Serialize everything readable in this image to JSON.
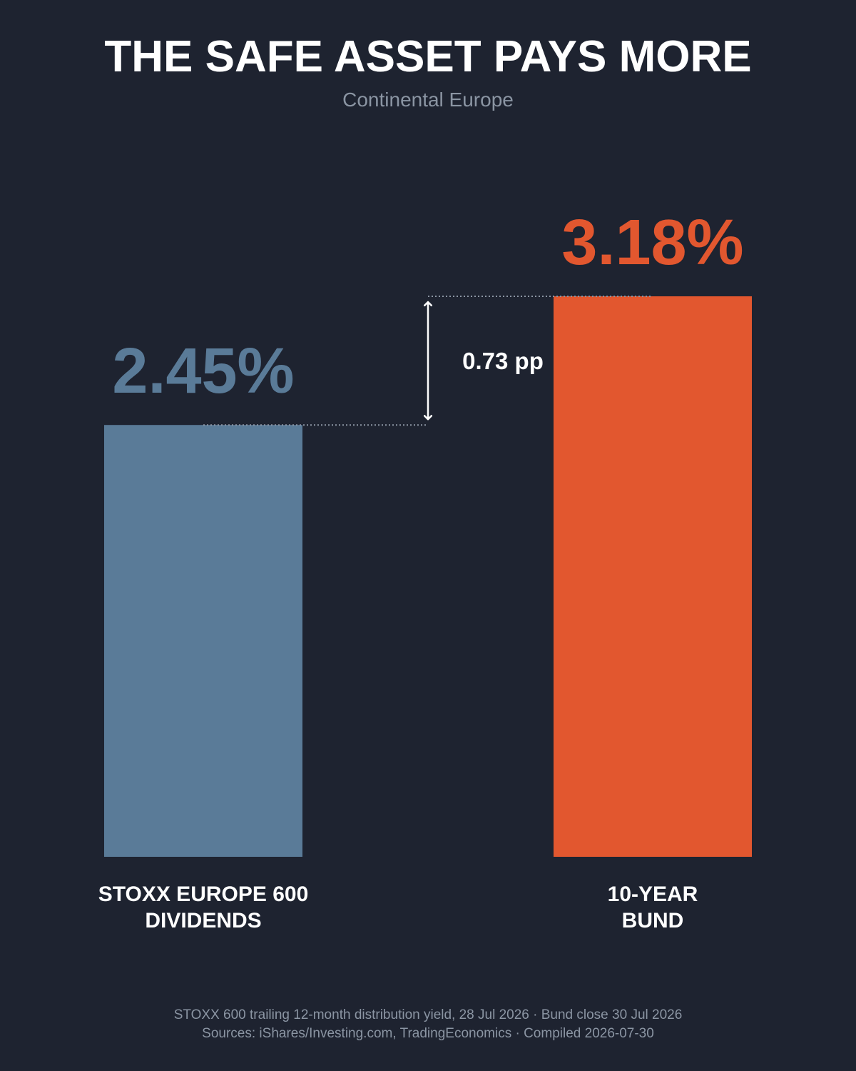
{
  "colors": {
    "background": "#1e2330",
    "stoxx": "#5a7b98",
    "bund": "#e2572f",
    "muted": "#8b95a3",
    "text": "#ffffff"
  },
  "chart_data": {
    "type": "bar",
    "title": "THE SAFE ASSET PAYS MORE",
    "subtitle": "Continental Europe",
    "categories": [
      [
        "STOXX EUROPE 600",
        "DIVIDENDS"
      ],
      [
        "10-YEAR",
        "BUND"
      ]
    ],
    "values": [
      2.45,
      3.18
    ],
    "value_labels": [
      "2.45%",
      "3.18%"
    ],
    "bar_colors": [
      "#5a7b98",
      "#e2572f"
    ],
    "unit": "%",
    "ylim": [
      0,
      3.18
    ],
    "grid": false,
    "legend": "none",
    "annotation": {
      "label": "0.73 pp",
      "from": 2.45,
      "to": 3.18
    }
  },
  "footer": {
    "line1": "STOXX 600 trailing 12-month distribution yield, 28 Jul 2026 · Bund close 30 Jul 2026",
    "line2": "Sources: iShares/Investing.com, TradingEconomics · Compiled 2026-07-30"
  }
}
